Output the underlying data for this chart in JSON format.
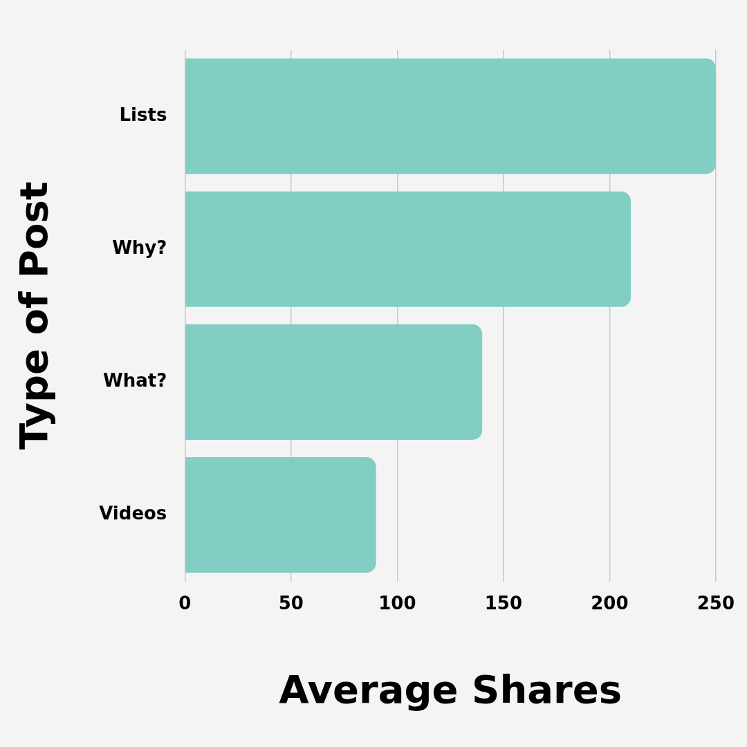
{
  "chart_data": {
    "type": "bar",
    "orientation": "horizontal",
    "categories": [
      "Lists",
      "Why?",
      "What?",
      "Videos"
    ],
    "values": [
      250,
      210,
      140,
      90
    ],
    "color": "#83cec4",
    "xlim": [
      0,
      250
    ],
    "xticks": [
      0,
      50,
      100,
      150,
      200,
      250
    ],
    "xlabel": "Average Shares",
    "ylabel": "Type of Post",
    "grid": "x",
    "legend": false
  }
}
